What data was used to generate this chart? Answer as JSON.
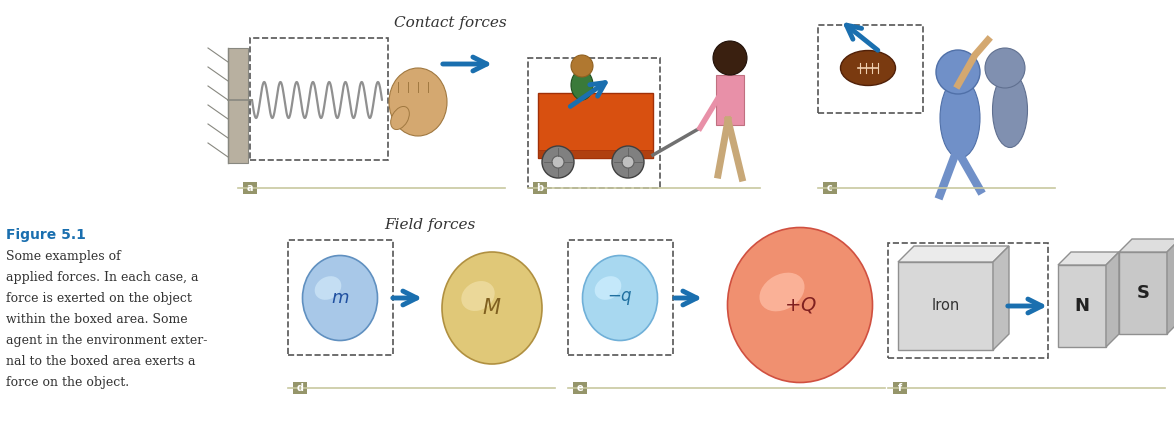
{
  "bg_color": "#ffffff",
  "top_label": "Contact forces",
  "bottom_label": "Field forces",
  "figure_label_bold": "Figure 5.1",
  "figure_label_color": "#1a6faf",
  "label_color": "#8a8a5a",
  "separator_color": "#c8c8a0",
  "arrow_color": "#1a6faf",
  "dashed_box_color": "#555555",
  "section_labels": [
    "a",
    "b",
    "c",
    "d",
    "e",
    "f"
  ],
  "caption_lines": [
    "Some examples of",
    "applied forces. In each case, a",
    "force is exerted on the object",
    "within the boxed area. Some",
    "agent in the environment exter-",
    "nal to the boxed area exerts a",
    "force on the object."
  ]
}
